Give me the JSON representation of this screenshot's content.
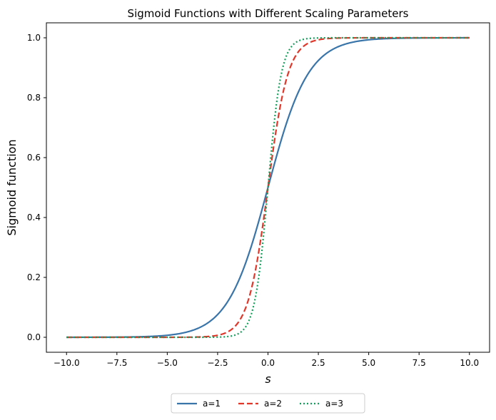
{
  "chart_data": {
    "type": "line",
    "title": "Sigmoid Functions with Different Scaling Parameters",
    "xlabel": "s",
    "ylabel": "Sigmoid function",
    "xlim": [
      -11.0,
      11.0
    ],
    "ylim": [
      -0.05,
      1.05
    ],
    "x_range": [
      -10,
      10
    ],
    "xticks": [
      -10.0,
      -7.5,
      -5.0,
      -2.5,
      0.0,
      2.5,
      5.0,
      7.5,
      10.0
    ],
    "xtick_labels": [
      "−10.0",
      "−7.5",
      "−5.0",
      "−2.5",
      "0.0",
      "2.5",
      "5.0",
      "7.5",
      "10.0"
    ],
    "yticks": [
      0.0,
      0.2,
      0.4,
      0.6,
      0.8,
      1.0
    ],
    "ytick_labels": [
      "0.0",
      "0.2",
      "0.4",
      "0.6",
      "0.8",
      "1.0"
    ],
    "grid": false,
    "legend_position": "bottom-center, outside plot",
    "series": [
      {
        "name": "a=1",
        "a": 1,
        "color": "#3a75aa",
        "style": "solid",
        "x": [
          -10,
          -8,
          -6,
          -5,
          -4,
          -3,
          -2.5,
          -2,
          -1.5,
          -1,
          -0.5,
          0,
          0.5,
          1,
          1.5,
          2,
          2.5,
          3,
          4,
          5,
          6,
          8,
          10
        ],
        "y": [
          4.54e-05,
          0.000335,
          0.00247,
          0.00669,
          0.018,
          0.0474,
          0.0759,
          0.119,
          0.182,
          0.269,
          0.378,
          0.5,
          0.622,
          0.731,
          0.818,
          0.881,
          0.924,
          0.953,
          0.982,
          0.993,
          0.998,
          0.9997,
          0.99995
        ]
      },
      {
        "name": "a=2",
        "a": 2,
        "color": "#e0372a",
        "style": "dashed",
        "x": [
          -10,
          -5,
          -3,
          -2.5,
          -2,
          -1.5,
          -1,
          -0.75,
          -0.5,
          -0.25,
          0,
          0.25,
          0.5,
          0.75,
          1,
          1.5,
          2,
          2.5,
          3,
          5,
          10
        ],
        "y": [
          0.0,
          4.54e-05,
          0.00247,
          0.00669,
          0.018,
          0.0474,
          0.119,
          0.182,
          0.269,
          0.378,
          0.5,
          0.622,
          0.731,
          0.818,
          0.881,
          0.953,
          0.982,
          0.993,
          0.998,
          1.0,
          1.0
        ]
      },
      {
        "name": "a=3",
        "a": 3,
        "color": "#13a05a",
        "style": "dotted",
        "x": [
          -10,
          -4,
          -3,
          -2,
          -1.5,
          -1,
          -0.75,
          -0.5,
          -0.25,
          0,
          0.25,
          0.5,
          0.75,
          1,
          1.5,
          2,
          3,
          4,
          10
        ],
        "y": [
          0.0,
          6.1e-06,
          0.000123,
          0.00247,
          0.011,
          0.0474,
          0.0954,
          0.182,
          0.321,
          0.5,
          0.679,
          0.818,
          0.905,
          0.953,
          0.989,
          0.998,
          0.9999,
          1.0,
          1.0
        ]
      }
    ]
  }
}
